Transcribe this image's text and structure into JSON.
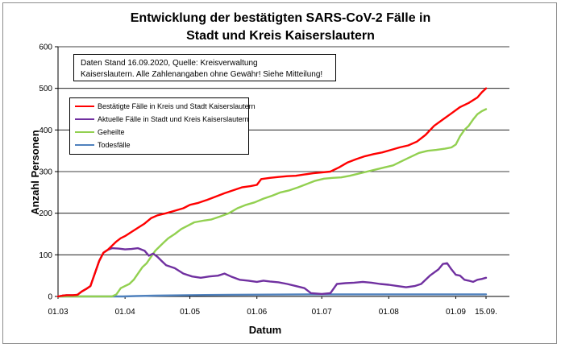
{
  "chart_data": {
    "type": "line",
    "title_line1": "Entwicklung der bestätigten SARS-CoV-2 Fälle in",
    "title_line2": "Stadt und Kreis Kaiserslautern",
    "xlabel": "Datum",
    "ylabel": "Anzahl Personen",
    "ylim": [
      0,
      600
    ],
    "yticks": [
      "0",
      "100",
      "200",
      "300",
      "400",
      "500",
      "600"
    ],
    "xlim_days": [
      0,
      198
    ],
    "xticks": [
      {
        "day": 0,
        "label": "01.03"
      },
      {
        "day": 31,
        "label": "01.04"
      },
      {
        "day": 61,
        "label": "01.05"
      },
      {
        "day": 92,
        "label": "01.06"
      },
      {
        "day": 122,
        "label": "01.07"
      },
      {
        "day": 153,
        "label": "01.08"
      },
      {
        "day": 184,
        "label": "01.09"
      },
      {
        "day": 198,
        "label": "15.09."
      }
    ],
    "grid": "horizontal",
    "legend_position": "upper-left",
    "note_line1": "Daten Stand 16.09.2020, Quelle: Kreisverwaltung",
    "note_line2": "Kaiserslautern. Alle Zahlenangaben ohne Gewähr! Siehe Mitteilung!",
    "series": [
      {
        "name": "Bestätigte Fälle in Kreis und Stadt Kaiserslautern",
        "color": "#ff0000",
        "points": [
          [
            0,
            0
          ],
          [
            2,
            2
          ],
          [
            4,
            3
          ],
          [
            7,
            3
          ],
          [
            9,
            4
          ],
          [
            11,
            12
          ],
          [
            13,
            18
          ],
          [
            15,
            25
          ],
          [
            17,
            55
          ],
          [
            19,
            85
          ],
          [
            21,
            105
          ],
          [
            23,
            112
          ],
          [
            25,
            122
          ],
          [
            27,
            132
          ],
          [
            29,
            140
          ],
          [
            31,
            145
          ],
          [
            34,
            155
          ],
          [
            37,
            165
          ],
          [
            40,
            175
          ],
          [
            43,
            188
          ],
          [
            46,
            195
          ],
          [
            50,
            200
          ],
          [
            54,
            206
          ],
          [
            58,
            212
          ],
          [
            61,
            220
          ],
          [
            65,
            225
          ],
          [
            69,
            232
          ],
          [
            73,
            240
          ],
          [
            77,
            248
          ],
          [
            81,
            255
          ],
          [
            85,
            262
          ],
          [
            89,
            265
          ],
          [
            92,
            268
          ],
          [
            94,
            282
          ],
          [
            98,
            285
          ],
          [
            102,
            287
          ],
          [
            106,
            289
          ],
          [
            110,
            290
          ],
          [
            114,
            293
          ],
          [
            118,
            296
          ],
          [
            122,
            298
          ],
          [
            126,
            300
          ],
          [
            130,
            310
          ],
          [
            134,
            322
          ],
          [
            138,
            330
          ],
          [
            142,
            337
          ],
          [
            146,
            342
          ],
          [
            150,
            346
          ],
          [
            154,
            352
          ],
          [
            158,
            358
          ],
          [
            162,
            363
          ],
          [
            166,
            372
          ],
          [
            170,
            388
          ],
          [
            174,
            410
          ],
          [
            178,
            425
          ],
          [
            182,
            440
          ],
          [
            186,
            455
          ],
          [
            190,
            465
          ],
          [
            194,
            478
          ],
          [
            196,
            490
          ],
          [
            198,
            500
          ]
        ]
      },
      {
        "name": "Aktuelle Fälle in Stadt und Kreis Kaiserslautern",
        "color": "#7030a0",
        "points": [
          [
            0,
            0
          ],
          [
            2,
            2
          ],
          [
            4,
            3
          ],
          [
            7,
            3
          ],
          [
            9,
            4
          ],
          [
            11,
            12
          ],
          [
            13,
            18
          ],
          [
            15,
            25
          ],
          [
            17,
            55
          ],
          [
            19,
            85
          ],
          [
            21,
            105
          ],
          [
            23,
            112
          ],
          [
            25,
            116
          ],
          [
            28,
            115
          ],
          [
            31,
            113
          ],
          [
            34,
            114
          ],
          [
            37,
            116
          ],
          [
            40,
            110
          ],
          [
            42,
            98
          ],
          [
            44,
            103
          ],
          [
            46,
            95
          ],
          [
            48,
            85
          ],
          [
            50,
            75
          ],
          [
            54,
            68
          ],
          [
            58,
            55
          ],
          [
            62,
            48
          ],
          [
            66,
            45
          ],
          [
            70,
            48
          ],
          [
            74,
            50
          ],
          [
            77,
            55
          ],
          [
            80,
            48
          ],
          [
            84,
            40
          ],
          [
            88,
            38
          ],
          [
            92,
            35
          ],
          [
            95,
            38
          ],
          [
            98,
            36
          ],
          [
            102,
            34
          ],
          [
            106,
            30
          ],
          [
            110,
            25
          ],
          [
            114,
            20
          ],
          [
            117,
            8
          ],
          [
            122,
            6
          ],
          [
            126,
            8
          ],
          [
            129,
            30
          ],
          [
            133,
            32
          ],
          [
            137,
            33
          ],
          [
            141,
            35
          ],
          [
            145,
            33
          ],
          [
            149,
            30
          ],
          [
            153,
            28
          ],
          [
            157,
            25
          ],
          [
            161,
            22
          ],
          [
            165,
            25
          ],
          [
            168,
            30
          ],
          [
            172,
            50
          ],
          [
            176,
            65
          ],
          [
            178,
            78
          ],
          [
            180,
            80
          ],
          [
            182,
            65
          ],
          [
            184,
            52
          ],
          [
            186,
            50
          ],
          [
            188,
            40
          ],
          [
            190,
            38
          ],
          [
            192,
            35
          ],
          [
            194,
            40
          ],
          [
            196,
            42
          ],
          [
            198,
            45
          ]
        ]
      },
      {
        "name": "Geheilte",
        "color": "#92d050",
        "points": [
          [
            0,
            0
          ],
          [
            25,
            0
          ],
          [
            27,
            5
          ],
          [
            29,
            20
          ],
          [
            31,
            25
          ],
          [
            33,
            30
          ],
          [
            35,
            40
          ],
          [
            37,
            55
          ],
          [
            39,
            70
          ],
          [
            41,
            80
          ],
          [
            43,
            95
          ],
          [
            45,
            110
          ],
          [
            47,
            120
          ],
          [
            49,
            130
          ],
          [
            51,
            140
          ],
          [
            54,
            150
          ],
          [
            57,
            162
          ],
          [
            60,
            170
          ],
          [
            63,
            178
          ],
          [
            67,
            182
          ],
          [
            71,
            185
          ],
          [
            75,
            192
          ],
          [
            79,
            200
          ],
          [
            83,
            212
          ],
          [
            87,
            220
          ],
          [
            91,
            226
          ],
          [
            95,
            235
          ],
          [
            99,
            242
          ],
          [
            103,
            250
          ],
          [
            107,
            255
          ],
          [
            111,
            262
          ],
          [
            115,
            270
          ],
          [
            119,
            278
          ],
          [
            123,
            283
          ],
          [
            127,
            285
          ],
          [
            131,
            286
          ],
          [
            135,
            290
          ],
          [
            139,
            295
          ],
          [
            143,
            300
          ],
          [
            147,
            305
          ],
          [
            151,
            310
          ],
          [
            155,
            315
          ],
          [
            159,
            325
          ],
          [
            163,
            335
          ],
          [
            167,
            345
          ],
          [
            171,
            350
          ],
          [
            175,
            352
          ],
          [
            179,
            355
          ],
          [
            182,
            358
          ],
          [
            184,
            365
          ],
          [
            186,
            385
          ],
          [
            188,
            400
          ],
          [
            190,
            410
          ],
          [
            192,
            425
          ],
          [
            194,
            438
          ],
          [
            196,
            445
          ],
          [
            198,
            450
          ]
        ]
      },
      {
        "name": "Todesfälle",
        "color": "#4f81bd",
        "points": [
          [
            0,
            0
          ],
          [
            30,
            0
          ],
          [
            36,
            1
          ],
          [
            45,
            2
          ],
          [
            60,
            3
          ],
          [
            80,
            4
          ],
          [
            120,
            5
          ],
          [
            160,
            5
          ],
          [
            198,
            5
          ]
        ]
      }
    ]
  }
}
